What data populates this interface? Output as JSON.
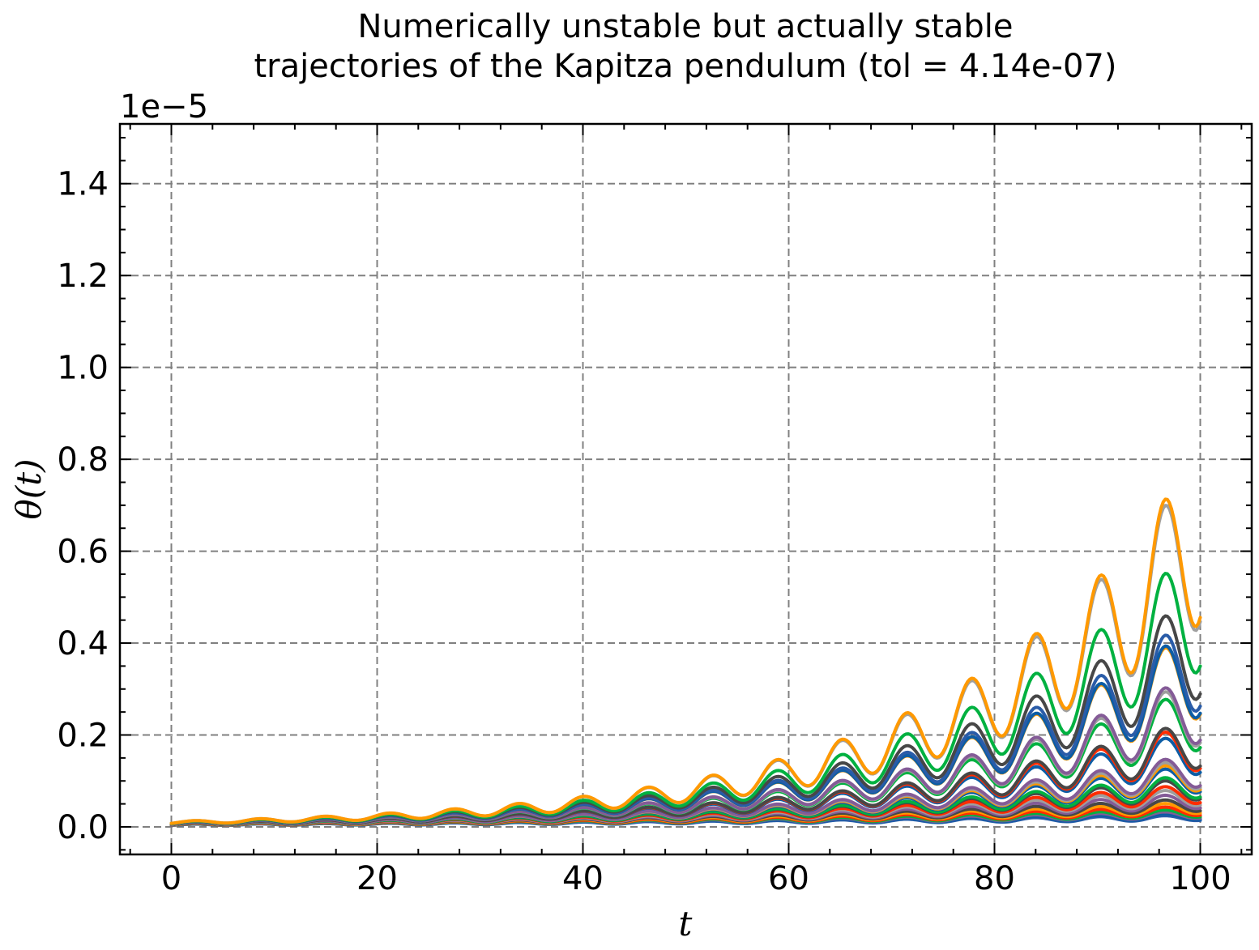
{
  "chart_data": {
    "type": "line",
    "title_line1": "Numerically unstable but actually stable",
    "title_line2": "trajectories of the Kapitza pendulum (tol = 4.14e-07)",
    "xlabel": "t",
    "ylabel": "θ(t)",
    "y_exponent_label": "1e−5",
    "y_scale_factor": 1e-05,
    "xlim": [
      -5,
      105
    ],
    "ylim": [
      -0.06,
      1.53
    ],
    "x_ticks": [
      0,
      20,
      40,
      60,
      80,
      100
    ],
    "x_tick_labels": [
      "0",
      "20",
      "40",
      "60",
      "80",
      "100"
    ],
    "y_ticks": [
      0.0,
      0.2,
      0.4,
      0.6,
      0.8,
      1.0,
      1.2,
      1.4
    ],
    "y_tick_labels": [
      "0.0",
      "0.2",
      "0.4",
      "0.6",
      "0.8",
      "1.0",
      "1.2",
      "1.4"
    ],
    "grid": true,
    "grid_color": "#808080",
    "legend": "none",
    "oscillation_period": 6.28,
    "first_peak_t": 2.3,
    "t_range": [
      0,
      100
    ],
    "series": [
      {
        "color": "#ff9900",
        "initial_value": 0.0095,
        "growth_rate": 0.042,
        "mod_amplitude": 0.3
      },
      {
        "color": "#a0a0a0",
        "initial_value": 0.0095,
        "growth_rate": 0.0418,
        "mod_amplitude": 0.3
      },
      {
        "color": "#00b140",
        "initial_value": 0.009,
        "growth_rate": 0.0399,
        "mod_amplitude": 0.3
      },
      {
        "color": "#474747",
        "initial_value": 0.009,
        "growth_rate": 0.038,
        "mod_amplitude": 0.3
      },
      {
        "color": "#2a5ca8",
        "initial_value": 0.0085,
        "growth_rate": 0.0376,
        "mod_amplitude": 0.3
      },
      {
        "color": "#0c5da5",
        "initial_value": 0.0085,
        "growth_rate": 0.037,
        "mod_amplitude": 0.3
      },
      {
        "color": "#ff9900",
        "initial_value": 0.0085,
        "growth_rate": 0.0369,
        "mod_amplitude": 0.3
      },
      {
        "color": "#9e9e9e",
        "initial_value": 0.008,
        "growth_rate": 0.0346,
        "mod_amplitude": 0.3
      },
      {
        "color": "#845b97",
        "initial_value": 0.008,
        "growth_rate": 0.0349,
        "mod_amplitude": 0.3
      },
      {
        "color": "#00b140",
        "initial_value": 0.008,
        "growth_rate": 0.034,
        "mod_amplitude": 0.3
      },
      {
        "color": "#474747",
        "initial_value": 0.0075,
        "growth_rate": 0.032,
        "mod_amplitude": 0.3
      },
      {
        "color": "#ff2c00",
        "initial_value": 0.0075,
        "growth_rate": 0.0316,
        "mod_amplitude": 0.3
      },
      {
        "color": "#0c5da5",
        "initial_value": 0.0075,
        "growth_rate": 0.0309,
        "mod_amplitude": 0.3
      },
      {
        "color": "#845b97",
        "initial_value": 0.007,
        "growth_rate": 0.0288,
        "mod_amplitude": 0.3
      },
      {
        "color": "#9e9e9e",
        "initial_value": 0.007,
        "growth_rate": 0.0283,
        "mod_amplitude": 0.3
      },
      {
        "color": "#ff9900",
        "initial_value": 0.007,
        "growth_rate": 0.0278,
        "mod_amplitude": 0.3
      },
      {
        "color": "#0c5da5",
        "initial_value": 0.0068,
        "growth_rate": 0.0275,
        "mod_amplitude": 0.3
      },
      {
        "color": "#00b140",
        "initial_value": 0.0065,
        "growth_rate": 0.0263,
        "mod_amplitude": 0.3
      },
      {
        "color": "#474747",
        "initial_value": 0.0065,
        "growth_rate": 0.0256,
        "mod_amplitude": 0.3
      },
      {
        "color": "#ff2c00",
        "initial_value": 0.0062,
        "growth_rate": 0.0247,
        "mod_amplitude": 0.3
      },
      {
        "color": "#9e9e9e",
        "initial_value": 0.006,
        "growth_rate": 0.024,
        "mod_amplitude": 0.3
      },
      {
        "color": "#845b97",
        "initial_value": 0.0058,
        "growth_rate": 0.0229,
        "mod_amplitude": 0.3
      },
      {
        "color": "#474747",
        "initial_value": 0.0056,
        "growth_rate": 0.0216,
        "mod_amplitude": 0.3
      },
      {
        "color": "#ff9900",
        "initial_value": 0.0054,
        "growth_rate": 0.0205,
        "mod_amplitude": 0.3
      },
      {
        "color": "#ff2c00",
        "initial_value": 0.0052,
        "growth_rate": 0.0192,
        "mod_amplitude": 0.3
      },
      {
        "color": "#00b140",
        "initial_value": 0.005,
        "growth_rate": 0.018,
        "mod_amplitude": 0.3
      },
      {
        "color": "#845b97",
        "initial_value": 0.0048,
        "growth_rate": 0.0171,
        "mod_amplitude": 0.3
      },
      {
        "color": "#0c5da5",
        "initial_value": 0.0046,
        "growth_rate": 0.016,
        "mod_amplitude": 0.3
      },
      {
        "color": "#2a5ca8",
        "initial_value": 0.0044,
        "growth_rate": 0.015,
        "mod_amplitude": 0.3
      }
    ]
  }
}
